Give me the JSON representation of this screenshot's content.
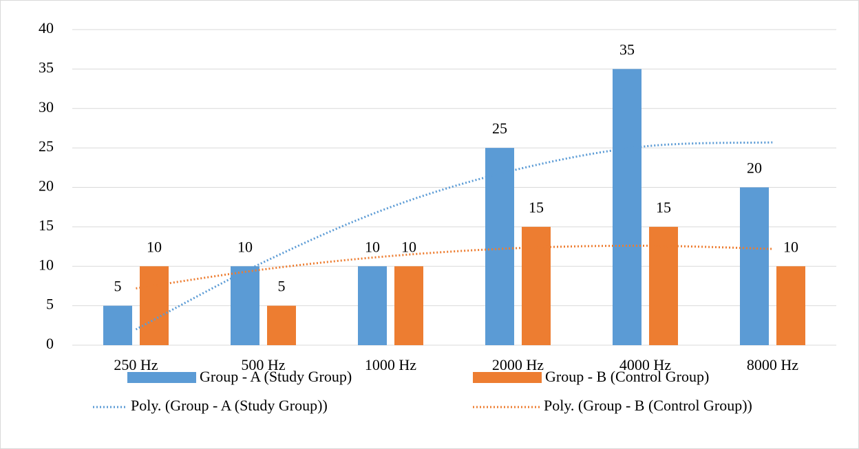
{
  "chart_data": {
    "type": "bar",
    "categories": [
      "250 Hz",
      "500 Hz",
      "1000 Hz",
      "2000 Hz",
      "4000 Hz",
      "8000 Hz"
    ],
    "series": [
      {
        "name": "Group - A (Study Group)",
        "color": "#5b9bd5",
        "values": [
          5,
          10,
          10,
          25,
          35,
          20
        ]
      },
      {
        "name": "Group - B (Control Group)",
        "color": "#ed7d31",
        "values": [
          10,
          5,
          10,
          15,
          15,
          10
        ]
      }
    ],
    "trendlines": [
      {
        "name": "Poly. (Group - A (Study Group))",
        "color": "#5b9bd5",
        "values": [
          2,
          10.5,
          17.5,
          22.3,
          25.2,
          25.7
        ]
      },
      {
        "name": "Poly. (Group - B (Control Group))",
        "color": "#ed7d31",
        "values": [
          7.2,
          9.6,
          11.3,
          12.3,
          12.6,
          12.2
        ]
      }
    ],
    "ylim": [
      0,
      40
    ],
    "yticks": [
      0,
      5,
      10,
      15,
      20,
      25,
      30,
      35,
      40
    ],
    "grid": true
  }
}
